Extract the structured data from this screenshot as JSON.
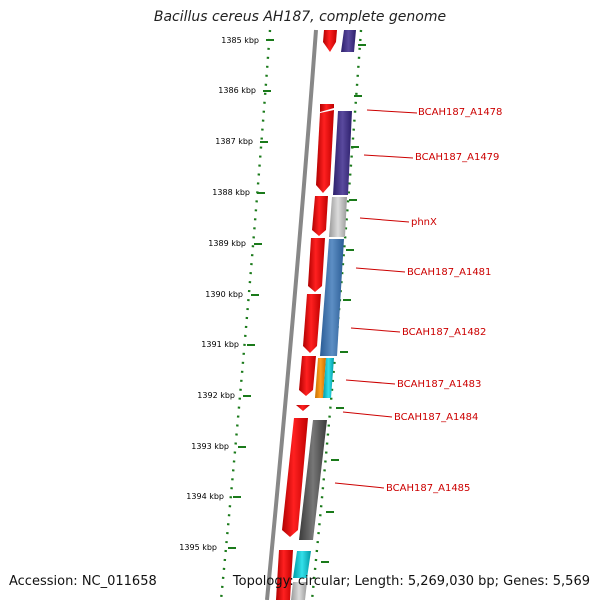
{
  "title": "Bacillus cereus AH187, complete genome",
  "accession": "Accession: NC_011658",
  "summary": "Topology: circular; Length: 5,269,030 bp; Genes: 5,569",
  "ticks": [
    "1385 kbp",
    "1386 kbp",
    "1387 kbp",
    "1388 kbp",
    "1389 kbp",
    "1390 kbp",
    "1391 kbp",
    "1392 kbp",
    "1393 kbp",
    "1394 kbp",
    "1395 kbp"
  ],
  "gene_labels": [
    "BCAH187_A1478",
    "BCAH187_A1479",
    "phnX",
    "BCAH187_A1481",
    "BCAH187_A1482",
    "BCAH187_A1483",
    "BCAH187_A1484",
    "BCAH187_A1485"
  ],
  "colors": {
    "cds": "#ee0000",
    "tick": "#1a7a1a",
    "label": "#cc0000",
    "backbone": "#888888"
  }
}
